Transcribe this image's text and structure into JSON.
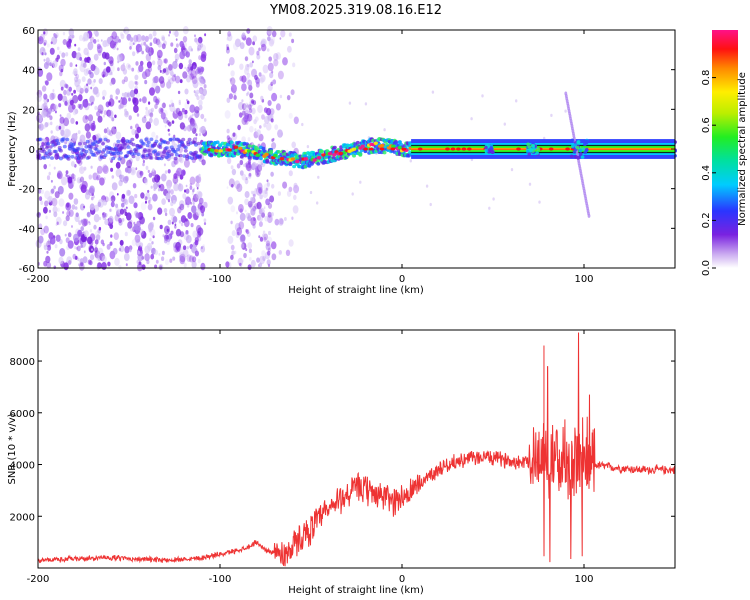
{
  "title": "YM08.2025.319.08.16.E12",
  "chart_data": [
    {
      "type": "heatmap",
      "xlabel": "Height of straight line (km)",
      "ylabel": "Frequency (Hz)",
      "xlim": [
        -200,
        150
      ],
      "ylim": [
        -60,
        60
      ],
      "xticks": [
        -200,
        -100,
        0,
        100
      ],
      "yticks": [
        -60,
        -40,
        -20,
        0,
        20,
        40,
        60
      ],
      "colorbar": {
        "label": "Normalized spectral amplitude",
        "range": [
          0,
          1
        ],
        "ticks": [
          0.0,
          0.2,
          0.4,
          0.6,
          0.8
        ]
      },
      "description_series": [
        {
          "name": "dominant-frequency-trace",
          "x": [
            -110,
            -90,
            -70,
            -55,
            -40,
            -25,
            -15,
            -5,
            0,
            20,
            50,
            70,
            85,
            95,
            100,
            150
          ],
          "y": [
            0,
            0,
            -4,
            -6,
            -3,
            0,
            2,
            1,
            0,
            0,
            0,
            0,
            0,
            0,
            0,
            0
          ]
        }
      ],
      "sweep_feature": {
        "x": [
          90,
          103
        ],
        "y": [
          28,
          -35
        ]
      }
    },
    {
      "type": "line",
      "xlabel": "Height of straight line (km)",
      "ylabel": "SNR (10 * v/v)",
      "xlim": [
        -200,
        150
      ],
      "ylim": [
        0,
        9200
      ],
      "xticks": [
        -200,
        -100,
        0,
        100
      ],
      "yticks": [
        2000,
        4000,
        6000,
        8000
      ],
      "color": "#ee3333",
      "envelope": {
        "x": [
          -200,
          -160,
          -130,
          -110,
          -95,
          -85,
          -80,
          -75,
          -65,
          -55,
          -45,
          -35,
          -25,
          -15,
          -5,
          5,
          15,
          25,
          35,
          45,
          55,
          65,
          75,
          80,
          85,
          90,
          95,
          100,
          105,
          115,
          130,
          150
        ],
        "y": [
          300,
          400,
          300,
          400,
          600,
          800,
          1000,
          700,
          500,
          1200,
          1900,
          2600,
          3100,
          2900,
          2600,
          2900,
          3600,
          4000,
          4200,
          4300,
          4200,
          4100,
          4300,
          4400,
          4200,
          4100,
          4200,
          4300,
          4000,
          3900,
          3800,
          3800
        ]
      },
      "spikes": [
        {
          "x": 78,
          "y": 8600
        },
        {
          "x": 80,
          "y": 7800
        },
        {
          "x": 97,
          "y": 9100
        },
        {
          "x": 103,
          "y": 6700
        }
      ]
    }
  ]
}
